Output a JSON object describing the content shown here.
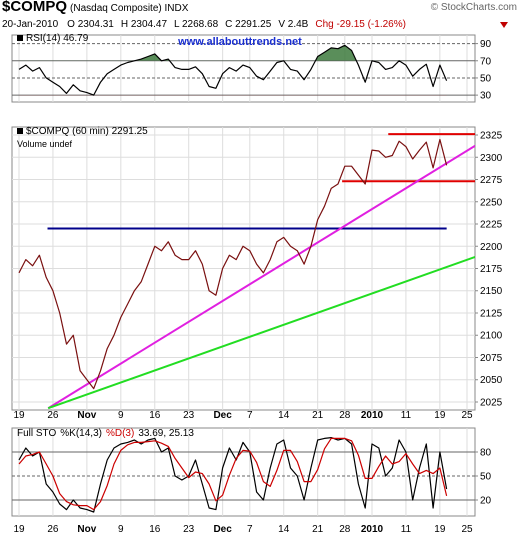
{
  "header": {
    "symbol": "$COMPQ",
    "name": "(Nasdaq Composite) INDX",
    "source": "© StockCharts.com",
    "date": "20-Jan-2010",
    "quote": [
      "O 2304.31",
      "H 2304.47",
      "L 2268.68",
      "C 2291.25",
      "V 2.4B"
    ],
    "change": "Chg -29.15 (-1.26%)",
    "website": "www.allabouttrends.net"
  },
  "chart_data": [
    {
      "type": "line",
      "title": "RSI(14) 46.79",
      "ylim": [
        22,
        100
      ],
      "yticks": [
        30,
        50,
        70,
        90
      ],
      "grid": true,
      "overbought": 70,
      "oversold": 30,
      "overbought_color": "#3d7a3d",
      "oversold_color": "#cc2222",
      "series": [
        {
          "name": "RSI(14)",
          "color": "#000000",
          "values": [
            60,
            65,
            58,
            62,
            50,
            45,
            40,
            32,
            42,
            35,
            33,
            30,
            45,
            55,
            60,
            65,
            68,
            70,
            72,
            75,
            78,
            70,
            72,
            62,
            60,
            60,
            63,
            55,
            40,
            38,
            55,
            62,
            58,
            65,
            62,
            52,
            48,
            58,
            68,
            70,
            60,
            58,
            48,
            60,
            75,
            80,
            85,
            84,
            88,
            82,
            65,
            45,
            70,
            68,
            60,
            62,
            70,
            65,
            52,
            60,
            66,
            40,
            65,
            46.79,
            null,
            null,
            null
          ]
        }
      ]
    },
    {
      "type": "line",
      "title": "$COMPQ (60 min) 2291.25",
      "subtitle": "Volume undef",
      "categories": [
        "19",
        null,
        null,
        null,
        null,
        "26",
        null,
        null,
        null,
        null,
        "Nov",
        null,
        null,
        null,
        null,
        "9",
        null,
        null,
        null,
        null,
        "16",
        null,
        null,
        null,
        null,
        "23",
        null,
        null,
        null,
        null,
        "Dec",
        null,
        null,
        null,
        "7",
        null,
        null,
        null,
        null,
        "14",
        null,
        null,
        null,
        null,
        "21",
        null,
        null,
        null,
        "28",
        null,
        null,
        null,
        "2010",
        null,
        null,
        null,
        null,
        "11",
        null,
        null,
        null,
        null,
        "19",
        null,
        null,
        null,
        "25"
      ],
      "ylim": [
        2016,
        2334
      ],
      "yticks": [
        2025,
        2050,
        2075,
        2100,
        2125,
        2150,
        2175,
        2200,
        2225,
        2250,
        2275,
        2300,
        2325
      ],
      "grid": true,
      "series": [
        {
          "name": "$COMPQ",
          "color": "#7a1010",
          "values": [
            2170,
            2185,
            2178,
            2190,
            2165,
            2150,
            2125,
            2090,
            2100,
            2060,
            2050,
            2040,
            2060,
            2085,
            2100,
            2120,
            2135,
            2150,
            2160,
            2180,
            2200,
            2195,
            2205,
            2190,
            2185,
            2185,
            2195,
            2180,
            2150,
            2145,
            2175,
            2190,
            2185,
            2200,
            2195,
            2180,
            2170,
            2185,
            2205,
            2210,
            2200,
            2195,
            2180,
            2200,
            2230,
            2245,
            2265,
            2270,
            2290,
            2290,
            2280,
            2270,
            2308,
            2307,
            2300,
            2302,
            2318,
            2312,
            2298,
            2308,
            2317,
            2288,
            2320,
            2291,
            null,
            null,
            null
          ]
        }
      ],
      "lines": [
        {
          "color": "#00008b",
          "points": [
            [
              4.2,
              2220
            ],
            [
              63,
              2220
            ]
          ]
        },
        {
          "color": "#e00000",
          "points": [
            [
              54.4,
              2326
            ],
            [
              67.2,
              2326
            ]
          ]
        },
        {
          "color": "#e00000",
          "points": [
            [
              47.6,
              2273
            ],
            [
              67.2,
              2273
            ]
          ]
        },
        {
          "color": "#e020e0",
          "points": [
            [
              4.3,
              2018
            ],
            [
              67.2,
              2313
            ]
          ]
        },
        {
          "color": "#22dd22",
          "points": [
            [
              4.3,
              2018
            ],
            [
              67.2,
              2188
            ]
          ]
        }
      ]
    },
    {
      "type": "line",
      "title": "Full STO",
      "readout": "33.69, 25.13",
      "categories": [
        "19",
        null,
        null,
        null,
        null,
        "26",
        null,
        null,
        null,
        null,
        "Nov",
        null,
        null,
        null,
        null,
        "9",
        null,
        null,
        null,
        null,
        "16",
        null,
        null,
        null,
        null,
        "23",
        null,
        null,
        null,
        null,
        "Dec",
        null,
        null,
        null,
        "7",
        null,
        null,
        null,
        null,
        "14",
        null,
        null,
        null,
        null,
        "21",
        null,
        null,
        null,
        "28",
        null,
        null,
        null,
        "2010",
        null,
        null,
        null,
        null,
        "11",
        null,
        null,
        null,
        null,
        "19",
        null,
        null,
        null,
        "25"
      ],
      "ylim": [
        0,
        110
      ],
      "yticks": [
        20,
        50,
        80
      ],
      "grid": true,
      "series": [
        {
          "name": "%K(14,3)",
          "color": "#000000",
          "values": [
            70,
            85,
            75,
            80,
            40,
            30,
            15,
            8,
            20,
            10,
            8,
            5,
            40,
            70,
            85,
            90,
            92,
            95,
            90,
            95,
            97,
            80,
            85,
            50,
            45,
            50,
            70,
            40,
            10,
            8,
            60,
            85,
            70,
            92,
            80,
            30,
            20,
            60,
            90,
            95,
            60,
            50,
            20,
            60,
            95,
            97,
            98,
            95,
            97,
            90,
            40,
            10,
            90,
            85,
            50,
            60,
            95,
            80,
            20,
            60,
            90,
            10,
            80,
            33.69,
            null,
            null,
            null
          ]
        },
        {
          "name": "%D(3)",
          "color": "#cc0000",
          "values": [
            65,
            75,
            77,
            80,
            65,
            50,
            28,
            18,
            14,
            13,
            13,
            8,
            18,
            38,
            65,
            82,
            89,
            92,
            92,
            93,
            94,
            91,
            87,
            72,
            60,
            48,
            55,
            53,
            40,
            19,
            26,
            51,
            72,
            82,
            81,
            67,
            43,
            37,
            57,
            82,
            82,
            68,
            43,
            43,
            58,
            84,
            97,
            97,
            97,
            94,
            76,
            47,
            47,
            62,
            75,
            65,
            68,
            78,
            65,
            53,
            57,
            53,
            60,
            25.13,
            null,
            null,
            null
          ]
        }
      ]
    }
  ]
}
